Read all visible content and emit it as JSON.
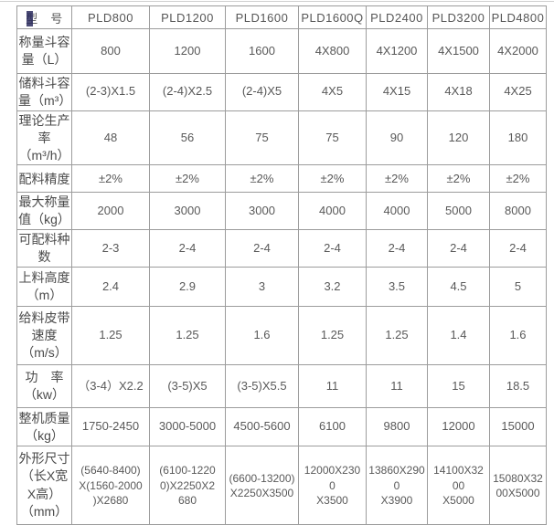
{
  "table": {
    "columns": [
      "型　号",
      "PLD800",
      "PLD1200",
      "PLD1600",
      "PLD1600Q",
      "PLD2400",
      "PLD3200",
      "PLD4800"
    ],
    "rows": [
      {
        "label": "称量斗容\n量（L）",
        "values": [
          "800",
          "1200",
          "1600",
          "4X800",
          "4X1200",
          "4X1500",
          "4X2000"
        ]
      },
      {
        "label": "储料斗容\n量（m³）",
        "values": [
          "(2-3)X1.5",
          "(2-4)X2.5",
          "(2-4)X5",
          "4X5",
          "4X15",
          "4X18",
          "4X25"
        ]
      },
      {
        "label": "理论生产\n率（m³/h）",
        "values": [
          "48",
          "56",
          "75",
          "75",
          "90",
          "120",
          "180"
        ]
      },
      {
        "label": "配料精度",
        "values": [
          "±2%",
          "±2%",
          "±2%",
          "±2%",
          "±2%",
          "±2%",
          "±2%"
        ]
      },
      {
        "label": "最大称量\n值（kg）",
        "values": [
          "2000",
          "3000",
          "3000",
          "4000",
          "4000",
          "5000",
          "8000"
        ]
      },
      {
        "label": "可配料种\n数",
        "values": [
          "2-3",
          "2-4",
          "2-4",
          "2-4",
          "2-4",
          "2-4",
          "2-4"
        ]
      },
      {
        "label": "上料高度\n（m）",
        "values": [
          "2.4",
          "2.9",
          "3",
          "3.2",
          "3.5",
          "4.5",
          "5"
        ]
      },
      {
        "label": "给料皮带\n速度\n（m/s）",
        "values": [
          "1.25",
          "1.25",
          "1.6",
          "1.25",
          "1.25",
          "1.4",
          "1.6"
        ]
      },
      {
        "label": "功　率\n（kw）",
        "values": [
          "（3-4）X2.2",
          "(3-5)X5",
          "(3-5)X5.5",
          "11",
          "11",
          "15",
          "18.5"
        ]
      },
      {
        "label": "整机质量\n（kg）",
        "values": [
          "1750-2450",
          "3000-5000",
          "4500-5600",
          "6100",
          "9800",
          "12000",
          "15000"
        ]
      },
      {
        "label": "外形尺寸\n（长X宽\nX高）\n（mm）",
        "values": [
          "(5640-8400)\nX(1560-2000\n)X2680",
          "(6100-1220\n0)X2250X2\n680",
          "(6600-13200)\nX2250X3500",
          "12000X230\n0\nX3500",
          "13860X290\n0\nX3900",
          "14100X32\n00\nX5000",
          "15080X32\n00X5000"
        ]
      }
    ]
  }
}
